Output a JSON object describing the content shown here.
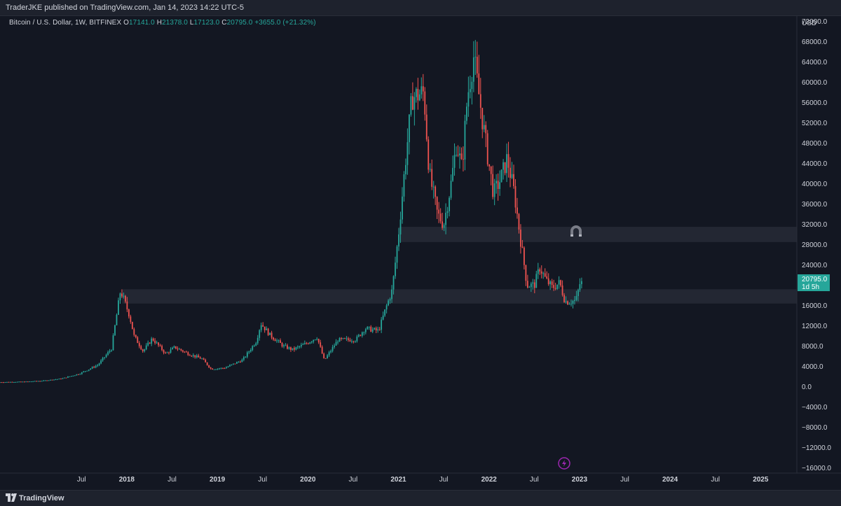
{
  "header": {
    "published": "TraderJKE published on TradingView.com, Jan 14, 2023 14:22 UTC-5"
  },
  "symbol": {
    "name": "Bitcoin / U.S. Dollar, 1W, BITFINEX",
    "o_label": "O",
    "o_value": "17141.0",
    "h_label": "H",
    "h_value": "21378.0",
    "l_label": "L",
    "l_value": "17123.0",
    "c_label": "C",
    "c_value": "20795.0",
    "change": "+3655.0 (+21.32%)"
  },
  "price_axis": {
    "currency": "USD",
    "ticks": [
      "72000.0",
      "68000.0",
      "64000.0",
      "60000.0",
      "56000.0",
      "52000.0",
      "48000.0",
      "44000.0",
      "40000.0",
      "36000.0",
      "32000.0",
      "28000.0",
      "24000.0",
      "16000.0",
      "12000.0",
      "8000.0",
      "4000.0",
      "0.0",
      "−4000.0",
      "−8000.0",
      "−12000.0",
      "−16000.0"
    ],
    "tick_values": [
      72000,
      68000,
      64000,
      60000,
      56000,
      52000,
      48000,
      44000,
      40000,
      36000,
      32000,
      28000,
      24000,
      16000,
      12000,
      8000,
      4000,
      0,
      -4000,
      -8000,
      -12000,
      -16000
    ],
    "current_price": "20795.0",
    "countdown": "1d 5h"
  },
  "time_axis": {
    "labels": [
      "Jul",
      "2018",
      "Jul",
      "2019",
      "Jul",
      "2020",
      "Jul",
      "2021",
      "Jul",
      "2022",
      "Jul",
      "2023",
      "Jul",
      "2024",
      "Jul",
      "2025"
    ],
    "dates": [
      2017.5,
      2018.0,
      2018.5,
      2019.0,
      2019.5,
      2020.0,
      2020.5,
      2021.0,
      2021.5,
      2022.0,
      2022.5,
      2023.0,
      2023.5,
      2024.0,
      2024.5,
      2025.0
    ]
  },
  "colors": {
    "background": "#131722",
    "up": "#26a69a",
    "down": "#ef5350",
    "zone": "#2a2e39",
    "price_tag": "#26a69a"
  },
  "chart_data": {
    "type": "candlestick",
    "series": [
      {
        "name": "Bitcoin / U.S. Dollar"
      }
    ],
    "interval": "1W",
    "xlim": [
      2016.6,
      2025.4
    ],
    "ylim": [
      -17000,
      73000
    ],
    "zones": [
      {
        "from": 28500,
        "to": 31500
      },
      {
        "from": 16400,
        "to": 19200
      }
    ],
    "path": [
      [
        2016.6,
        900
      ],
      [
        2016.9,
        1000
      ],
      [
        2017.1,
        1200
      ],
      [
        2017.3,
        1600
      ],
      [
        2017.5,
        2600
      ],
      [
        2017.7,
        4300
      ],
      [
        2017.85,
        7500
      ],
      [
        2017.95,
        19000
      ],
      [
        2018.05,
        14000
      ],
      [
        2018.1,
        10000
      ],
      [
        2018.2,
        7000
      ],
      [
        2018.3,
        9500
      ],
      [
        2018.45,
        6500
      ],
      [
        2018.55,
        7800
      ],
      [
        2018.7,
        6500
      ],
      [
        2018.85,
        5500
      ],
      [
        2018.95,
        3500
      ],
      [
        2019.1,
        3700
      ],
      [
        2019.3,
        5300
      ],
      [
        2019.45,
        9000
      ],
      [
        2019.5,
        12500
      ],
      [
        2019.6,
        10200
      ],
      [
        2019.75,
        8000
      ],
      [
        2019.85,
        7300
      ],
      [
        2020.0,
        8500
      ],
      [
        2020.12,
        9800
      ],
      [
        2020.2,
        5200
      ],
      [
        2020.35,
        9200
      ],
      [
        2020.55,
        9300
      ],
      [
        2020.65,
        11500
      ],
      [
        2020.8,
        11000
      ],
      [
        2020.88,
        15500
      ],
      [
        2020.95,
        19000
      ],
      [
        2021.02,
        30000
      ],
      [
        2021.1,
        45000
      ],
      [
        2021.17,
        57000
      ],
      [
        2021.3,
        58000
      ],
      [
        2021.36,
        42000
      ],
      [
        2021.45,
        34000
      ],
      [
        2021.52,
        32000
      ],
      [
        2021.6,
        40000
      ],
      [
        2021.66,
        48000
      ],
      [
        2021.72,
        43000
      ],
      [
        2021.78,
        57000
      ],
      [
        2021.85,
        65000
      ],
      [
        2021.92,
        56000
      ],
      [
        2022.0,
        46000
      ],
      [
        2022.07,
        38000
      ],
      [
        2022.15,
        41000
      ],
      [
        2022.22,
        45000
      ],
      [
        2022.3,
        38000
      ],
      [
        2022.36,
        30000
      ],
      [
        2022.44,
        20000
      ],
      [
        2022.52,
        20000
      ],
      [
        2022.58,
        23500
      ],
      [
        2022.65,
        21000
      ],
      [
        2022.72,
        19500
      ],
      [
        2022.8,
        20500
      ],
      [
        2022.86,
        16800
      ],
      [
        2022.92,
        16800
      ],
      [
        2022.98,
        17000
      ],
      [
        2023.03,
        20795
      ]
    ]
  }
}
